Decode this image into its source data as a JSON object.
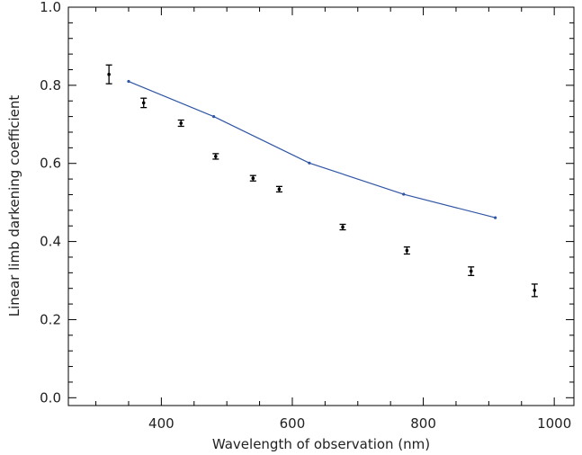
{
  "chart_data": {
    "type": "scatter",
    "title": "",
    "xlabel": "Wavelength of observation (nm)",
    "ylabel": "Linear limb darkening coefficient",
    "xlim": [
      258,
      1030
    ],
    "ylim": [
      -0.02,
      1.0
    ],
    "xticks": [
      400,
      600,
      800,
      1000
    ],
    "yticks": [
      0.0,
      0.2,
      0.4,
      0.6,
      0.8,
      1.0
    ],
    "grid": false,
    "series": [
      {
        "kind": "errorbar",
        "color": "#000000",
        "points": [
          {
            "x": 320,
            "y": 0.828,
            "err": 0.024
          },
          {
            "x": 373,
            "y": 0.755,
            "err": 0.012
          },
          {
            "x": 430,
            "y": 0.703,
            "err": 0.008
          },
          {
            "x": 483,
            "y": 0.618,
            "err": 0.007
          },
          {
            "x": 540,
            "y": 0.562,
            "err": 0.007
          },
          {
            "x": 580,
            "y": 0.534,
            "err": 0.007
          },
          {
            "x": 677,
            "y": 0.437,
            "err": 0.007
          },
          {
            "x": 775,
            "y": 0.377,
            "err": 0.009
          },
          {
            "x": 873,
            "y": 0.324,
            "err": 0.011
          },
          {
            "x": 970,
            "y": 0.275,
            "err": 0.016
          }
        ]
      },
      {
        "kind": "line",
        "color": "#2f55a4",
        "x": [
          350,
          480,
          626,
          770,
          910
        ],
        "y": [
          0.81,
          0.72,
          0.601,
          0.521,
          0.461
        ]
      }
    ]
  }
}
